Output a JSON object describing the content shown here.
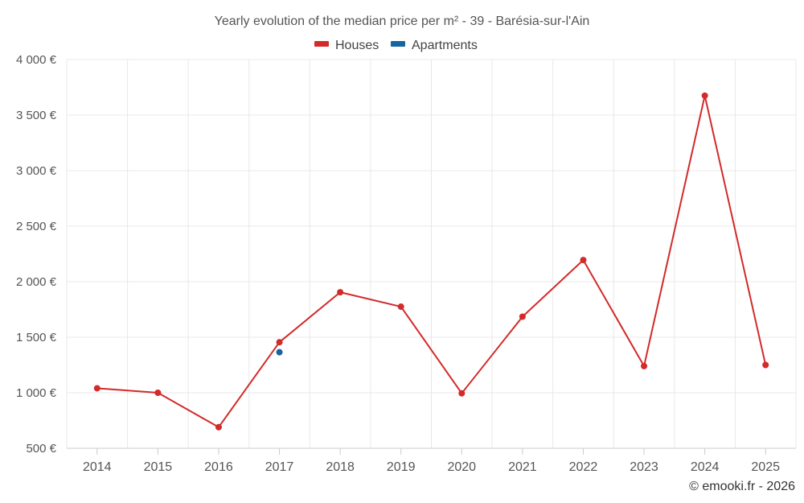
{
  "chart_data": {
    "type": "line",
    "title": "Yearly evolution of the median price per m² - 39 - Barésia-sur-l'Ain",
    "categories": [
      "2014",
      "2015",
      "2016",
      "2017",
      "2018",
      "2019",
      "2020",
      "2021",
      "2022",
      "2023",
      "2024",
      "2025"
    ],
    "y_ticks": [
      "500 €",
      "1 000 €",
      "1 500 €",
      "2 000 €",
      "2 500 €",
      "3 000 €",
      "3 500 €",
      "4 000 €"
    ],
    "ylim": [
      500,
      4000
    ],
    "legend_position": "top-center",
    "series": [
      {
        "name": "Houses",
        "color": "#d32a2a",
        "values": [
          1040,
          1000,
          690,
          1455,
          1905,
          1775,
          995,
          1685,
          2195,
          1240,
          3675,
          1250
        ]
      },
      {
        "name": "Apartments",
        "color": "#1565a0",
        "values": [
          null,
          null,
          null,
          1365,
          null,
          null,
          null,
          null,
          null,
          null,
          null,
          null
        ]
      }
    ],
    "credit": "© emooki.fr - 2026"
  }
}
